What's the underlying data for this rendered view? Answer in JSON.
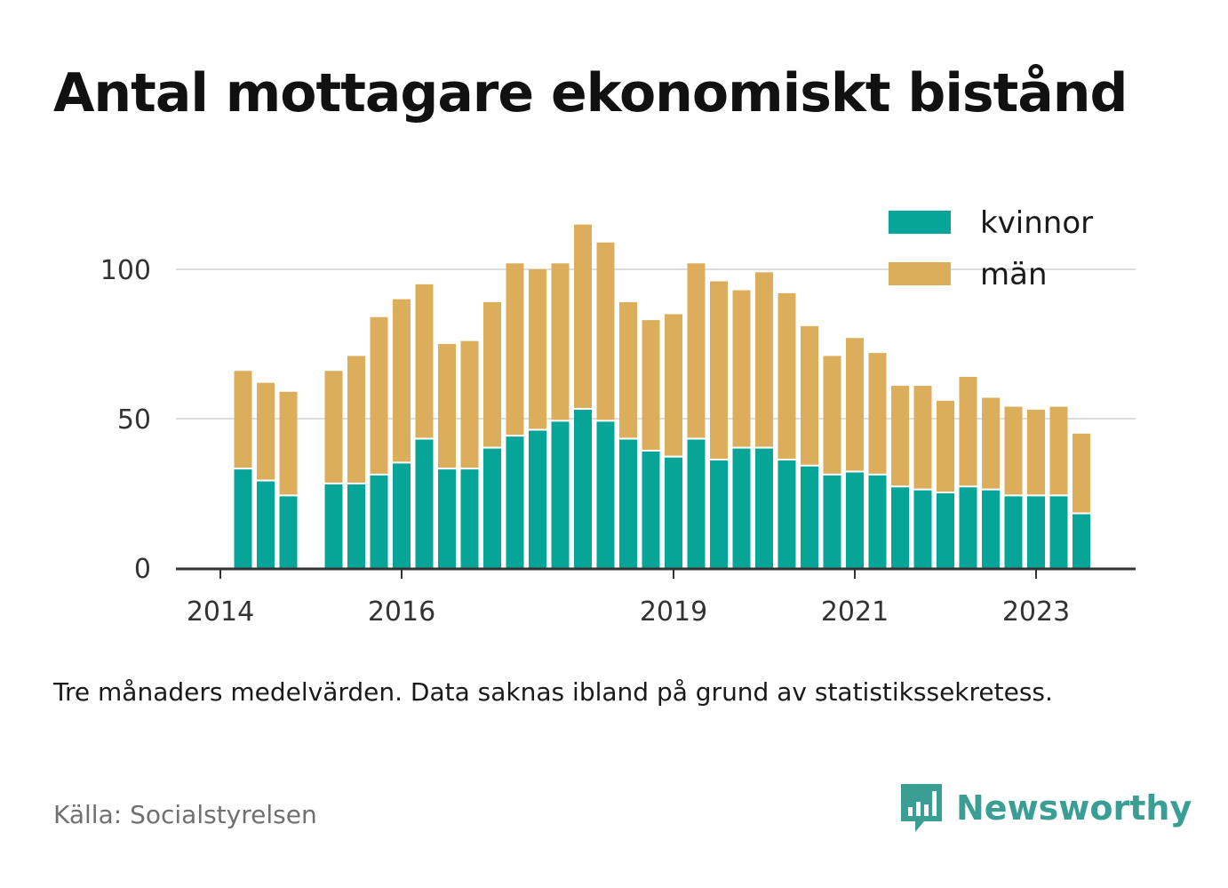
{
  "title": "Antal mottagare ekonomiskt bistånd",
  "note": "Tre månaders medelvärden. Data saknas ibland på grund av statistikssekretess.",
  "source": "Källa: Socialstyrelsen",
  "brand": {
    "name": "Newsworthy",
    "icon": "newsworthy-logo-icon",
    "color": "#3a9e95"
  },
  "chart_data": {
    "type": "bar",
    "stacked": true,
    "x_tick_labels": [
      "2014",
      "2016",
      "2019",
      "2021",
      "2023"
    ],
    "y_ticks": [
      0,
      50,
      100
    ],
    "ylim": [
      0,
      120
    ],
    "grid": true,
    "legend_position": "top-right",
    "series": [
      {
        "name": "kvinnor",
        "color": "#07a597",
        "values": [
          null,
          33,
          29,
          24,
          null,
          28,
          28,
          31,
          35,
          43,
          33,
          33,
          40,
          44,
          46,
          49,
          53,
          49,
          43,
          39,
          37,
          43,
          36,
          40,
          40,
          36,
          34,
          31,
          32,
          31,
          27,
          26,
          25,
          27,
          26,
          24,
          24,
          24,
          18
        ]
      },
      {
        "name": "män",
        "color": "#dcae5c",
        "values": [
          null,
          33,
          33,
          35,
          null,
          38,
          43,
          53,
          55,
          52,
          42,
          43,
          49,
          58,
          54,
          53,
          62,
          60,
          46,
          44,
          48,
          59,
          60,
          53,
          59,
          56,
          47,
          40,
          45,
          41,
          34,
          35,
          31,
          37,
          31,
          30,
          29,
          30,
          27
        ]
      }
    ],
    "tick_positions": [
      0,
      8,
      20,
      28,
      36
    ]
  }
}
